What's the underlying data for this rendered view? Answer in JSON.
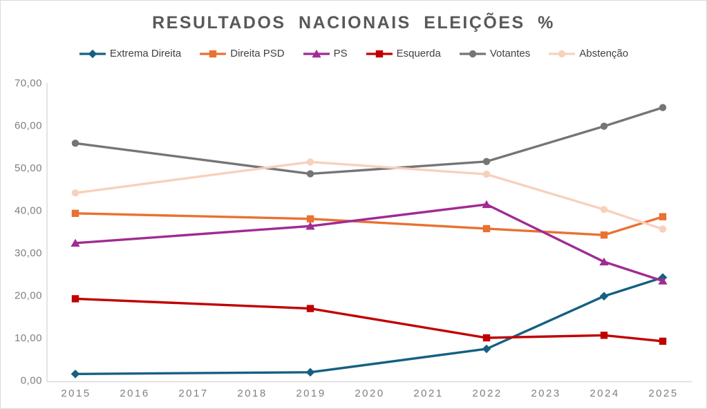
{
  "title": "RESULTADOS NACIONAIS ELEIÇÕES %",
  "colors": {
    "axis_line": "#D9D9D9",
    "tick_label": "#7F7F7F",
    "title_text": "#595959",
    "legend_text": "#404040",
    "background": "#FFFFFF"
  },
  "chart_data": {
    "type": "line",
    "title": "RESULTADOS NACIONAIS ELEIÇÕES %",
    "xlabel": "",
    "ylabel": "",
    "xlim": [
      2015,
      2025
    ],
    "ylim": [
      0,
      70
    ],
    "grid": false,
    "legend_position": "top",
    "x": [
      2015,
      2019,
      2022,
      2024,
      2025
    ],
    "x_axis_ticks": [
      2015,
      2016,
      2017,
      2018,
      2019,
      2020,
      2021,
      2022,
      2023,
      2024,
      2025
    ],
    "y_ticks": [
      {
        "v": 70,
        "label": "70,00"
      },
      {
        "v": 60,
        "label": "60,00"
      },
      {
        "v": 50,
        "label": "50,00"
      },
      {
        "v": 40,
        "label": "40,00"
      },
      {
        "v": 30,
        "label": "30,00"
      },
      {
        "v": 20,
        "label": "20,00"
      },
      {
        "v": 10,
        "label": "10,00"
      },
      {
        "v": 0,
        "label": "0,00"
      }
    ],
    "series": [
      {
        "name": "Extrema Direita",
        "color": "#156082",
        "marker": "diamond",
        "values": [
          1.5,
          1.9,
          7.4,
          19.8,
          24.2
        ]
      },
      {
        "name": "Direita PSD",
        "color": "#E97132",
        "marker": "square",
        "values": [
          39.3,
          38.0,
          35.7,
          34.2,
          38.5
        ]
      },
      {
        "name": "PS",
        "color": "#A02B93",
        "marker": "triangle",
        "values": [
          32.3,
          36.3,
          41.4,
          27.9,
          23.4
        ]
      },
      {
        "name": "Esquerda",
        "color": "#C00000",
        "marker": "square",
        "values": [
          19.2,
          16.9,
          10.0,
          10.6,
          9.2
        ]
      },
      {
        "name": "Votantes",
        "color": "#757575",
        "marker": "circle",
        "values": [
          55.8,
          48.6,
          51.5,
          59.8,
          64.2
        ]
      },
      {
        "name": "Abstenção",
        "color": "#F7D1BC",
        "marker": "circle",
        "values": [
          44.1,
          51.4,
          48.5,
          40.2,
          35.6
        ]
      }
    ]
  }
}
